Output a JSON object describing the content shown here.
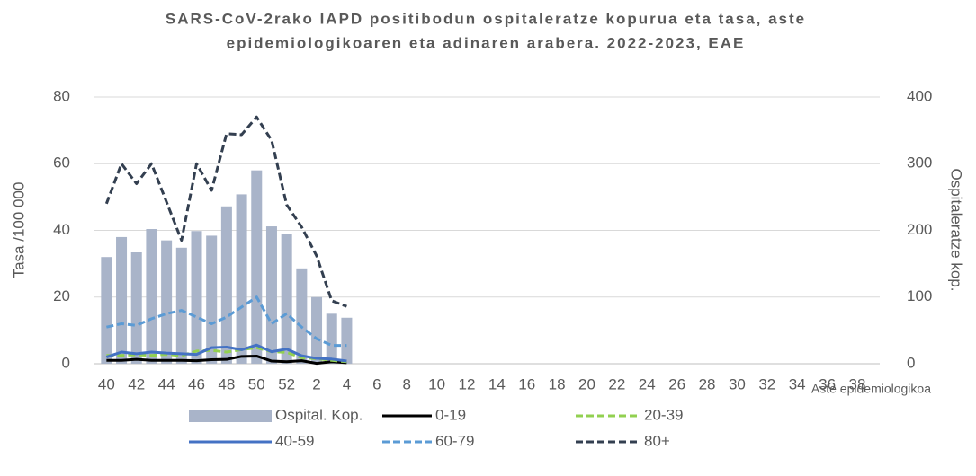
{
  "chart_data": {
    "type": "bar-line",
    "title": [
      "SARS-CoV-2rako IAPD positibodun ospitaleratze kopurua eta tasa, aste",
      "epidemiologikoaren eta adinaren arabera. 2022-2023, EAE"
    ],
    "y_label": "Tasa /100 000",
    "y2_label": "Ospitaleratze kop.",
    "x_label": "Aste epidemiologikoa",
    "categories": [
      "40",
      null,
      "42",
      null,
      "44",
      null,
      "46",
      null,
      "48",
      null,
      "50",
      null,
      "52",
      null,
      "2",
      null,
      "4",
      null,
      "6",
      null,
      "8",
      null,
      "10",
      null,
      "12",
      null,
      "14",
      null,
      "16",
      null,
      "18",
      null,
      "20",
      null,
      "22",
      null,
      "24",
      null,
      "26",
      null,
      "28",
      null,
      "30",
      null,
      "32",
      null,
      "34",
      null,
      "36",
      null,
      "38",
      null
    ],
    "ylim": [
      0,
      80
    ],
    "yticks": [
      0,
      20,
      40,
      60,
      80
    ],
    "y2lim": [
      0,
      400
    ],
    "y2ticks": [
      0,
      100,
      200,
      300,
      400
    ],
    "grid": true,
    "legend": "bottom",
    "series": [
      {
        "name": "Ospital. Kop.",
        "type": "bar",
        "axis": "y2",
        "color": "#a9b4c9",
        "values": [
          160,
          190,
          167,
          202,
          185,
          174,
          199,
          192,
          236,
          254,
          290,
          206,
          194,
          143,
          100,
          75,
          69,
          null,
          null,
          null,
          null,
          null,
          null,
          null,
          null,
          null,
          null,
          null,
          null,
          null,
          null,
          null,
          null,
          null,
          null,
          null,
          null,
          null,
          null,
          null,
          null,
          null,
          null,
          null,
          null,
          null,
          null,
          null,
          null,
          null,
          null,
          null
        ]
      },
      {
        "name": "0-19",
        "type": "line",
        "color": "#000000",
        "dash": false,
        "values": [
          1,
          1,
          1.3,
          1,
          1,
          1,
          0.9,
          1.2,
          1.3,
          2.2,
          2.3,
          0.8,
          0.6,
          0.9,
          0.1,
          0.6,
          0.3,
          null,
          null,
          null,
          null,
          null,
          null,
          null,
          null,
          null,
          null,
          null,
          null,
          null,
          null,
          null,
          null,
          null,
          null,
          null,
          null,
          null,
          null,
          null,
          null,
          null,
          null,
          null,
          null,
          null,
          null,
          null,
          null,
          null,
          null,
          null
        ]
      },
      {
        "name": "20-39",
        "type": "line",
        "color": "#92d050",
        "dash": true,
        "values": [
          2.5,
          2.5,
          2.7,
          2.5,
          2.8,
          2.4,
          3.8,
          4,
          3.5,
          4.2,
          4.8,
          3.6,
          3.4,
          1.8,
          1.5,
          1,
          0.6,
          null,
          null,
          null,
          null,
          null,
          null,
          null,
          null,
          null,
          null,
          null,
          null,
          null,
          null,
          null,
          null,
          null,
          null,
          null,
          null,
          null,
          null,
          null,
          null,
          null,
          null,
          null,
          null,
          null,
          null,
          null,
          null,
          null,
          null,
          null
        ]
      },
      {
        "name": "40-59",
        "type": "line",
        "color": "#4472c4",
        "dash": false,
        "values": [
          2,
          3.5,
          3,
          3.5,
          3.2,
          3,
          2.8,
          4.8,
          5,
          4.2,
          5.6,
          3.6,
          4.4,
          2.4,
          1.6,
          1.4,
          0.8,
          null,
          null,
          null,
          null,
          null,
          null,
          null,
          null,
          null,
          null,
          null,
          null,
          null,
          null,
          null,
          null,
          null,
          null,
          null,
          null,
          null,
          null,
          null,
          null,
          null,
          null,
          null,
          null,
          null,
          null,
          null,
          null,
          null,
          null,
          null
        ]
      },
      {
        "name": "60-79",
        "type": "line",
        "color": "#5b9bd5",
        "dash": true,
        "values": [
          11,
          12,
          11.5,
          13.5,
          15,
          16,
          14,
          12,
          14,
          17,
          20,
          12,
          15,
          11,
          7.5,
          5.5,
          5.5,
          null,
          null,
          null,
          null,
          null,
          null,
          null,
          null,
          null,
          null,
          null,
          null,
          null,
          null,
          null,
          null,
          null,
          null,
          null,
          null,
          null,
          null,
          null,
          null,
          null,
          null,
          null,
          null,
          null,
          null,
          null,
          null,
          null,
          null,
          null
        ]
      },
      {
        "name": "80+",
        "type": "line",
        "color": "#333f50",
        "dash": true,
        "values": [
          48,
          60,
          54,
          60,
          48.5,
          37,
          60,
          52,
          69,
          68.7,
          74,
          67,
          47.7,
          41,
          32.3,
          18.9,
          17.2,
          null,
          null,
          null,
          null,
          null,
          null,
          null,
          null,
          null,
          null,
          null,
          null,
          null,
          null,
          null,
          null,
          null,
          null,
          null,
          null,
          null,
          null,
          null,
          null,
          null,
          null,
          null,
          null,
          null,
          null,
          null,
          null,
          null,
          null,
          null
        ]
      }
    ]
  }
}
